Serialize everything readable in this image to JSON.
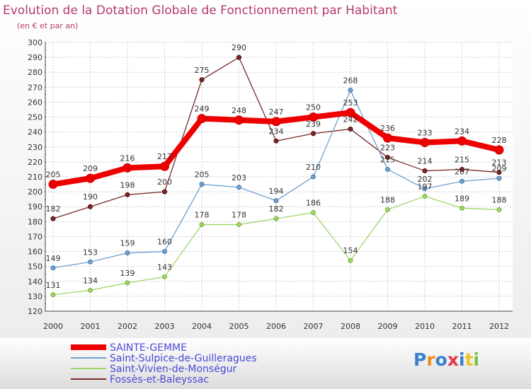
{
  "chart_data": {
    "type": "line",
    "title": "Evolution de la Dotation Globale de Fonctionnement par Habitant",
    "subtitle": "(en € et par an)",
    "categories": [
      "2000",
      "2001",
      "2002",
      "2003",
      "2004",
      "2005",
      "2006",
      "2007",
      "2008",
      "2009",
      "2010",
      "2011",
      "2012"
    ],
    "ylim": [
      120,
      300
    ],
    "yticks": [
      120,
      130,
      140,
      150,
      160,
      170,
      180,
      190,
      200,
      210,
      220,
      230,
      240,
      250,
      260,
      270,
      280,
      290,
      300
    ],
    "grid": true,
    "legend_position": "bottom-left",
    "series": [
      {
        "name": "SAINTE-GEMME",
        "color": "#ee0000",
        "values": [
          205,
          209,
          216,
          217,
          249,
          248,
          247,
          250,
          253,
          236,
          233,
          234,
          228
        ]
      },
      {
        "name": "Saint-Sulpice-de-Guilleragues",
        "color": "#6fa0d0",
        "values": [
          149,
          153,
          159,
          160,
          205,
          203,
          194,
          210,
          268,
          215,
          202,
          207,
          209
        ]
      },
      {
        "name": "Saint-Vivien-de-Monségur",
        "color": "#9ed66a",
        "values": [
          131,
          134,
          139,
          143,
          178,
          178,
          182,
          186,
          154,
          188,
          197,
          189,
          188
        ]
      },
      {
        "name": "Fossès-et-Baleyssac",
        "color": "#7a2a2a",
        "values": [
          182,
          190,
          198,
          200,
          275,
          290,
          234,
          239,
          242,
          223,
          214,
          215,
          213
        ]
      }
    ]
  },
  "logo": {
    "text": "Proxiti"
  }
}
